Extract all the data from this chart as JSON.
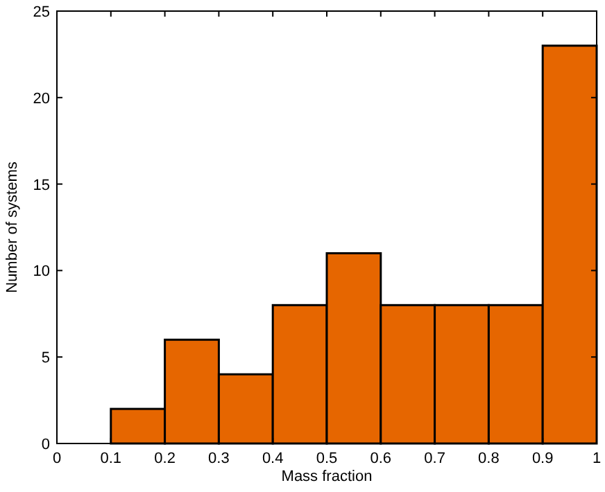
{
  "chart_data": {
    "type": "histogram",
    "xlabel": "Mass fraction",
    "ylabel": "Number of systems",
    "bins": [
      0,
      0.1,
      0.2,
      0.3,
      0.4,
      0.5,
      0.6,
      0.7,
      0.8,
      0.9,
      1
    ],
    "values": [
      0,
      2,
      6,
      4,
      8,
      11,
      8,
      8,
      8,
      23
    ],
    "color": "#e66600",
    "xlim": [
      0,
      1
    ],
    "xticks": [
      0,
      0.1,
      0.2,
      0.3,
      0.4,
      0.5,
      0.6,
      0.7,
      0.8,
      0.9,
      1
    ],
    "ylim": [
      0,
      25
    ],
    "yticks": [
      0,
      5,
      10,
      15,
      20,
      25
    ],
    "grid": false
  }
}
